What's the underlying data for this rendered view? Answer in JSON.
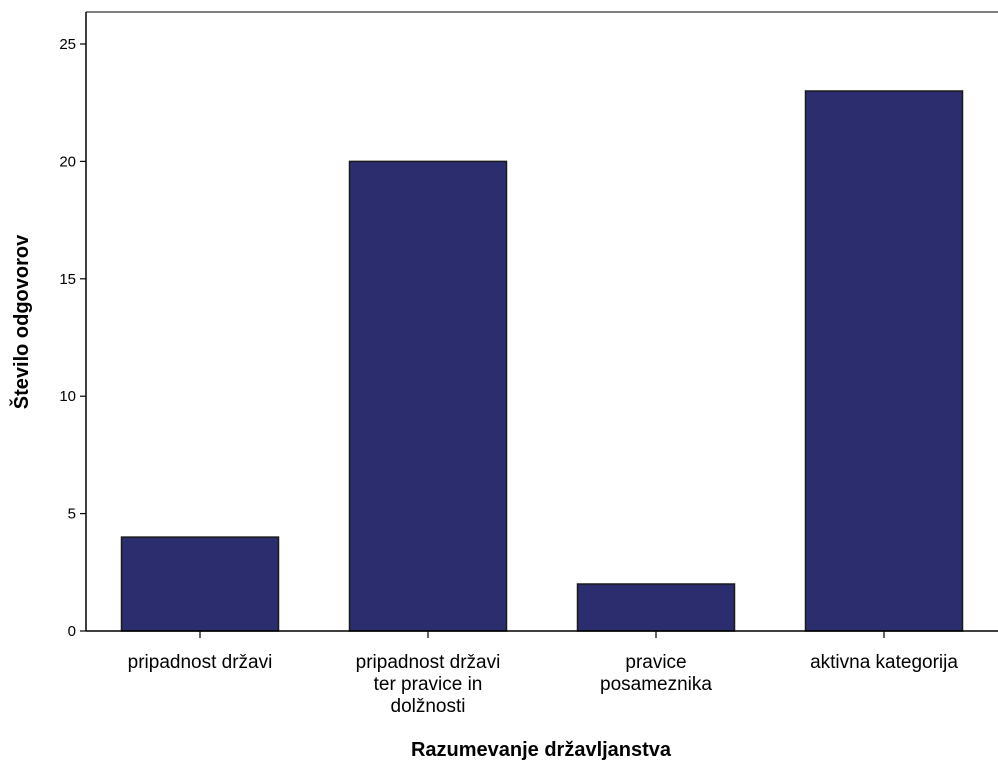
{
  "chart_data": {
    "type": "bar",
    "title": "",
    "xlabel": "Razumevanje državljanstva",
    "ylabel": "Število odgovorov",
    "categories": [
      [
        "pripadnost državi"
      ],
      [
        "pripadnost državi",
        "ter pravice in",
        "dolžnosti"
      ],
      [
        "pravice",
        "posameznika"
      ],
      [
        "aktivna kategorija"
      ]
    ],
    "values": [
      4,
      20,
      2,
      23
    ],
    "ylim": [
      0,
      26
    ],
    "yticks": [
      0,
      5,
      10,
      15,
      20,
      25
    ],
    "grid": false,
    "legend": "none",
    "colors": {
      "bar_fill": "#2b2d6e",
      "bar_stroke": "#1a1a1a",
      "axis": "#000000",
      "frame": "#555555"
    }
  }
}
